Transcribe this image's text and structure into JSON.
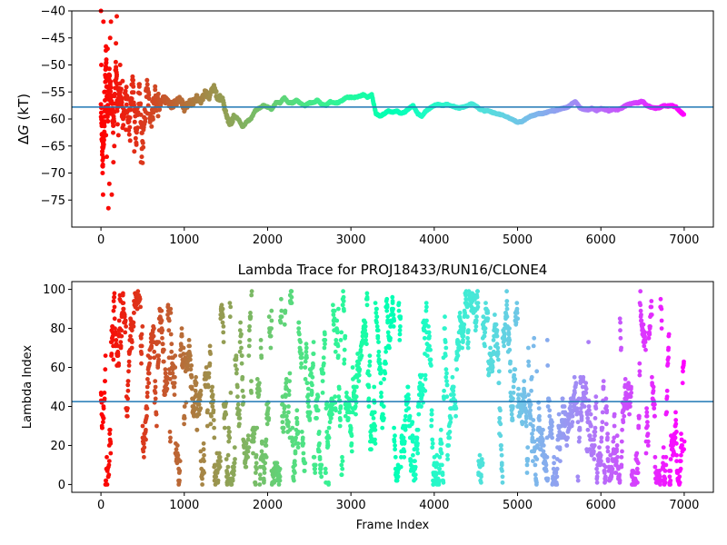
{
  "chart_data": [
    {
      "type": "scatter",
      "title": "",
      "xlabel": "",
      "ylabel": "ΔG (kT)",
      "ylabel_main": "Δ",
      "ylabel_italic": "G",
      "ylabel_unit": " (kT)",
      "xlim": [
        -350,
        7350
      ],
      "ylim": [
        -80,
        -40
      ],
      "xticks": [
        0,
        1000,
        2000,
        3000,
        4000,
        5000,
        6000,
        7000
      ],
      "yticks": [
        -75,
        -70,
        -65,
        -60,
        -55,
        -50,
        -45,
        -40
      ],
      "hline": -57.8,
      "grid": false,
      "colormap": "rainbow (red at frame 0 → violet at frame 7000)",
      "series": [
        {
          "trace": [
            [
              0,
              -58
            ],
            [
              20,
              -68
            ],
            [
              40,
              -62
            ],
            [
              60,
              -48
            ],
            [
              80,
              -60
            ],
            [
              100,
              -52
            ],
            [
              120,
              -56
            ],
            [
              150,
              -62
            ],
            [
              180,
              -50
            ],
            [
              200,
              -58
            ],
            [
              230,
              -54
            ],
            [
              260,
              -60
            ],
            [
              300,
              -55
            ],
            [
              340,
              -62
            ],
            [
              380,
              -52
            ],
            [
              420,
              -64
            ],
            [
              460,
              -55
            ],
            [
              500,
              -66
            ],
            [
              550,
              -54
            ],
            [
              600,
              -60
            ],
            [
              650,
              -56
            ],
            [
              700,
              -58
            ],
            [
              750,
              -56
            ],
            [
              800,
              -57
            ],
            [
              850,
              -57.5
            ],
            [
              900,
              -57
            ],
            [
              950,
              -56
            ],
            [
              1000,
              -58
            ],
            [
              1050,
              -57
            ],
            [
              1100,
              -57
            ],
            [
              1150,
              -56
            ],
            [
              1200,
              -57
            ],
            [
              1250,
              -55
            ],
            [
              1300,
              -56
            ],
            [
              1350,
              -54
            ],
            [
              1400,
              -56
            ],
            [
              1450,
              -56
            ],
            [
              1500,
              -59
            ],
            [
              1550,
              -61
            ],
            [
              1600,
              -59.5
            ],
            [
              1650,
              -60
            ],
            [
              1700,
              -61.5
            ],
            [
              1750,
              -60.5
            ],
            [
              1800,
              -60
            ],
            [
              1850,
              -58.5
            ],
            [
              1900,
              -58
            ],
            [
              1950,
              -57.5
            ],
            [
              2000,
              -57.8
            ],
            [
              2050,
              -58.2
            ],
            [
              2100,
              -57
            ],
            [
              2150,
              -57
            ],
            [
              2200,
              -56
            ],
            [
              2250,
              -57
            ],
            [
              2300,
              -57
            ],
            [
              2350,
              -56.5
            ],
            [
              2400,
              -57.2
            ],
            [
              2450,
              -57.5
            ],
            [
              2500,
              -57
            ],
            [
              2550,
              -57
            ],
            [
              2600,
              -56.5
            ],
            [
              2650,
              -57.3
            ],
            [
              2700,
              -57.5
            ],
            [
              2750,
              -56.8
            ],
            [
              2800,
              -57
            ],
            [
              2850,
              -57
            ],
            [
              2900,
              -56.5
            ],
            [
              2950,
              -56
            ],
            [
              3000,
              -56
            ],
            [
              3050,
              -56
            ],
            [
              3100,
              -55.8
            ],
            [
              3150,
              -55.5
            ],
            [
              3200,
              -56
            ],
            [
              3250,
              -55.5
            ],
            [
              3300,
              -59
            ],
            [
              3350,
              -59.5
            ],
            [
              3400,
              -59
            ],
            [
              3450,
              -58.5
            ],
            [
              3500,
              -58.8
            ],
            [
              3550,
              -58.5
            ],
            [
              3600,
              -59
            ],
            [
              3650,
              -58.7
            ],
            [
              3700,
              -58
            ],
            [
              3750,
              -57.5
            ],
            [
              3800,
              -59
            ],
            [
              3850,
              -59.5
            ],
            [
              3900,
              -58.5
            ],
            [
              3950,
              -58
            ],
            [
              4000,
              -57.5
            ],
            [
              4050,
              -57.3
            ],
            [
              4100,
              -57.5
            ],
            [
              4150,
              -57.3
            ],
            [
              4200,
              -57.5
            ],
            [
              4250,
              -57.8
            ],
            [
              4300,
              -58
            ],
            [
              4350,
              -57.8
            ],
            [
              4400,
              -57.5
            ],
            [
              4450,
              -57.2
            ],
            [
              4500,
              -57.6
            ],
            [
              4550,
              -58.2
            ],
            [
              4600,
              -58.5
            ],
            [
              4650,
              -58.5
            ],
            [
              4700,
              -58.8
            ],
            [
              4750,
              -59
            ],
            [
              4800,
              -59.2
            ],
            [
              4850,
              -59.5
            ],
            [
              4900,
              -59.8
            ],
            [
              4950,
              -60.2
            ],
            [
              5000,
              -60.6
            ],
            [
              5050,
              -60.5
            ],
            [
              5100,
              -60
            ],
            [
              5150,
              -59.5
            ],
            [
              5200,
              -59.3
            ],
            [
              5250,
              -59
            ],
            [
              5300,
              -59
            ],
            [
              5350,
              -58.8
            ],
            [
              5400,
              -58.5
            ],
            [
              5450,
              -58.5
            ],
            [
              5500,
              -58.2
            ],
            [
              5550,
              -58
            ],
            [
              5600,
              -57.8
            ],
            [
              5650,
              -57.2
            ],
            [
              5700,
              -56.8
            ],
            [
              5750,
              -58
            ],
            [
              5800,
              -58.2
            ],
            [
              5850,
              -58.3
            ],
            [
              5900,
              -58
            ],
            [
              5950,
              -58.5
            ],
            [
              6000,
              -58
            ],
            [
              6050,
              -58.3
            ],
            [
              6100,
              -58.5
            ],
            [
              6150,
              -58.2
            ],
            [
              6200,
              -58.3
            ],
            [
              6250,
              -58
            ],
            [
              6300,
              -57.5
            ],
            [
              6350,
              -57.2
            ],
            [
              6400,
              -57
            ],
            [
              6450,
              -57
            ],
            [
              6500,
              -56.7
            ],
            [
              6550,
              -57.5
            ],
            [
              6600,
              -57.8
            ],
            [
              6650,
              -58
            ],
            [
              6700,
              -58
            ],
            [
              6750,
              -57.5
            ],
            [
              6800,
              -57.6
            ],
            [
              6850,
              -57.5
            ],
            [
              6900,
              -57.8
            ],
            [
              6950,
              -58.6
            ],
            [
              7000,
              -59.3
            ]
          ],
          "outliers": [
            [
              0,
              -40
            ],
            [
              5,
              -50
            ],
            [
              10,
              -60
            ],
            [
              15,
              -66
            ],
            [
              20,
              -70
            ],
            [
              25,
              -74
            ],
            [
              30,
              -42
            ],
            [
              40,
              -55
            ],
            [
              50,
              -58
            ],
            [
              60,
              -63
            ],
            [
              70,
              -67
            ],
            [
              80,
              -47
            ],
            [
              90,
              -76.5
            ],
            [
              100,
              -72
            ],
            [
              110,
              -45
            ],
            [
              120,
              -42
            ],
            [
              130,
              -74
            ],
            [
              150,
              -68
            ],
            [
              160,
              -65
            ],
            [
              180,
              -46
            ],
            [
              190,
              -41
            ],
            [
              200,
              -61
            ],
            [
              210,
              -63
            ],
            [
              230,
              -50
            ],
            [
              260,
              -53
            ],
            [
              300,
              -62
            ],
            [
              350,
              -64
            ],
            [
              400,
              -66
            ],
            [
              430,
              -62
            ],
            [
              480,
              -68
            ],
            [
              490,
              -67
            ],
            [
              520,
              -61
            ],
            [
              560,
              -59
            ],
            [
              600,
              -59
            ],
            [
              650,
              -54
            ]
          ]
        }
      ]
    },
    {
      "type": "scatter",
      "title": "Lambda Trace for PROJ18433/RUN16/CLONE4",
      "xlabel": "Frame Index",
      "ylabel": "Lambda Index",
      "xlim": [
        -350,
        7350
      ],
      "ylim": [
        -4,
        104
      ],
      "xticks": [
        0,
        1000,
        2000,
        3000,
        4000,
        5000,
        6000,
        7000
      ],
      "yticks": [
        0,
        20,
        40,
        60,
        80,
        100
      ],
      "hline": 42.5,
      "grid": false,
      "colormap": "rainbow (red at frame 0 → violet at frame 7000)",
      "series": [
        {
          "n_points": 7000,
          "lambda_min": 0,
          "lambda_max": 99,
          "dense_low_region": [
            5000,
            7000
          ],
          "sparse_high_region": [
            5000,
            6200
          ]
        }
      ]
    }
  ]
}
